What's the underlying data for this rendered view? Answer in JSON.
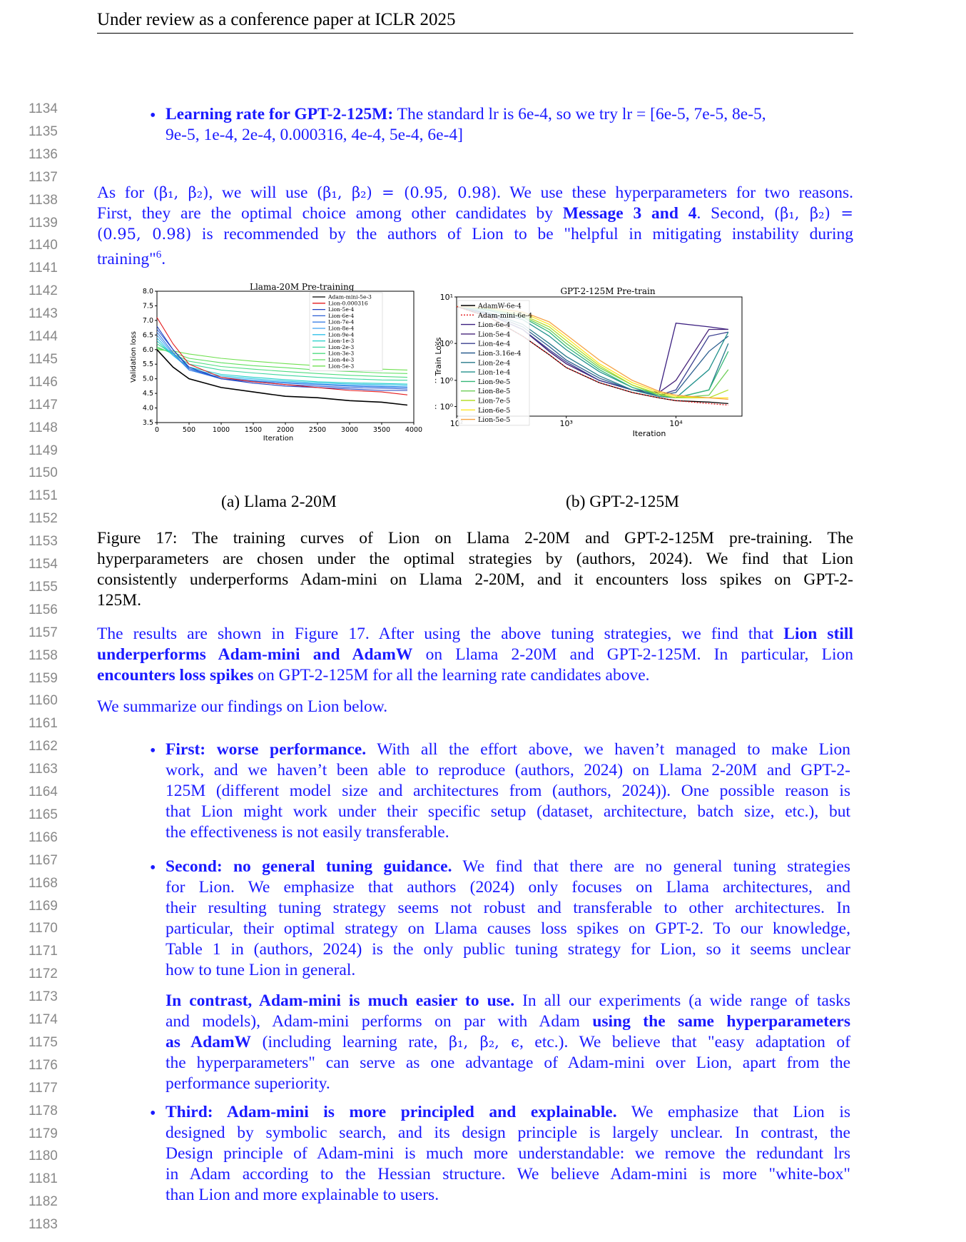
{
  "header": "Under review as a conference paper at ICLR 2025",
  "line_numbers": [
    "1134",
    "1135",
    "1136",
    "1137",
    "1138",
    "1139",
    "1140",
    "1141",
    "1142",
    "1143",
    "1144",
    "1145",
    "1146",
    "1147",
    "1148",
    "1149",
    "1150",
    "1151",
    "1152",
    "1153",
    "1154",
    "1155",
    "1156",
    "1157",
    "1158",
    "1159",
    "1160",
    "1161",
    "1162",
    "1163",
    "1164",
    "1165",
    "1166",
    "1167",
    "1168",
    "1169",
    "1170",
    "1171",
    "1172",
    "1173",
    "1174",
    "1175",
    "1176",
    "1177",
    "1178",
    "1179",
    "1180",
    "1181",
    "1182",
    "1183"
  ],
  "lr_bullet": {
    "bold": "Learning rate for GPT-2-125M:",
    "line1": "The standard lr is 6e-4, so we try lr = [6e-5, 7e-5, 8e-5,",
    "line2": "9e-5, 1e-4, 2e-4, 0.000316, 4e-4, 5e-4, 6e-4]"
  },
  "para1": {
    "l1a": "As for ",
    "l1m1": "(β₁, β₂)",
    "l1b": ", we will use ",
    "l1m2": "(β₁, β₂) = (0.95, 0.98)",
    "l1c": ". We use these hyperparameters for two reasons.",
    "l2a": "First, they are the optimal choice among other candidates by ",
    "l2bold": "Message 3 and 4",
    "l2b": ". Second, ",
    "l2m": "(β₁, β₂) =",
    "l3m": "(0.95, 0.98)",
    "l3b": " is recommended by the authors of Lion to be \"helpful in mitigating instability during",
    "l4": "training\"",
    "l4sup": "6",
    "l4end": "."
  },
  "fig_a": {
    "caption": "(a) Llama 2-20M",
    "title": "Llama-20M Pre-training",
    "ylabel": "Validation loss",
    "xlabel": "Iteration",
    "yticks": [
      "8.0",
      "7.5",
      "7.0",
      "6.5",
      "6.0",
      "5.5",
      "5.0",
      "4.5",
      "4.0",
      "3.5"
    ],
    "xticks": [
      "0",
      "500",
      "1000",
      "1500",
      "2000",
      "2500",
      "3000",
      "3500",
      "4000"
    ],
    "legend": [
      "Adam-mini-5e-3",
      "Lion-0.000316",
      "Lion-5e-4",
      "Lion-6e-4",
      "Lion-7e-4",
      "Lion-8e-4",
      "Lion-9e-4",
      "Lion-1e-3",
      "Lion-2e-3",
      "Lion-3e-3",
      "Lion-4e-3",
      "Lion-5e-3"
    ]
  },
  "fig_b": {
    "caption": "(b) GPT-2-125M",
    "title": "GPT-2-125M Pre-train",
    "ylabel": "Train Loss",
    "xlabel": "Iteration",
    "yticks": [
      "10¹",
      "6 × 10⁰",
      "4 × 10⁰",
      "3 × 10⁰"
    ],
    "xticks": [
      "10²",
      "10³",
      "10⁴"
    ],
    "legend": [
      "AdamW-6e-4",
      "Adam-mini-6e-4",
      "Lion-6e-4",
      "Lion-5e-4",
      "Lion-4e-4",
      "Lion-3.16e-4",
      "Lion-2e-4",
      "Lion-1e-4",
      "Lion-9e-5",
      "Lion-8e-5",
      "Lion-7e-5",
      "Lion-6e-5",
      "Lion-5e-5"
    ]
  },
  "chart_data": [
    {
      "type": "line",
      "title": "Llama-20M Pre-training",
      "xlabel": "Iteration",
      "ylabel": "Validation loss",
      "xlim": [
        0,
        4000
      ],
      "ylim": [
        3.5,
        8.0
      ],
      "x": [
        0,
        250,
        500,
        1000,
        1500,
        2000,
        2500,
        3000,
        3500,
        3900
      ],
      "series": [
        {
          "name": "Adam-mini-5e-3",
          "color": "#000000",
          "values": [
            6.0,
            5.4,
            5.0,
            4.7,
            4.55,
            4.4,
            4.35,
            4.25,
            4.2,
            4.1
          ]
        },
        {
          "name": "Lion-0.000316",
          "color": "#e31a1c",
          "values": [
            7.1,
            6.2,
            5.5,
            5.05,
            4.9,
            4.8,
            4.7,
            4.6,
            4.55,
            4.45
          ]
        },
        {
          "name": "Lion-5e-4",
          "color": "#1f3fbf",
          "values": [
            6.8,
            6.0,
            5.4,
            5.0,
            4.85,
            4.75,
            4.7,
            4.65,
            4.6,
            4.6
          ]
        },
        {
          "name": "Lion-6e-4",
          "color": "#2b5fd6",
          "values": [
            6.7,
            6.0,
            5.35,
            5.0,
            4.9,
            4.8,
            4.75,
            4.7,
            4.68,
            4.65
          ]
        },
        {
          "name": "Lion-7e-4",
          "color": "#3b80e6",
          "values": [
            6.6,
            5.9,
            5.3,
            5.0,
            4.92,
            4.85,
            4.8,
            4.75,
            4.72,
            4.7
          ]
        },
        {
          "name": "Lion-8e-4",
          "color": "#3fa0f0",
          "values": [
            6.5,
            5.85,
            5.3,
            5.05,
            4.95,
            4.88,
            4.82,
            4.78,
            4.75,
            4.72
          ]
        },
        {
          "name": "Lion-9e-4",
          "color": "#2fc0e8",
          "values": [
            6.4,
            5.8,
            5.35,
            5.1,
            5.0,
            4.92,
            4.86,
            4.82,
            4.8,
            4.78
          ]
        },
        {
          "name": "Lion-1e-3",
          "color": "#1fd0c8",
          "values": [
            6.3,
            5.8,
            5.4,
            5.15,
            5.05,
            4.97,
            4.9,
            4.86,
            4.84,
            4.82
          ]
        },
        {
          "name": "Lion-2e-3",
          "color": "#3fd6a0",
          "values": [
            6.2,
            5.85,
            5.5,
            5.3,
            5.2,
            5.12,
            5.05,
            5.0,
            4.96,
            4.95
          ]
        },
        {
          "name": "Lion-3e-3",
          "color": "#4fdc80",
          "values": [
            6.1,
            5.85,
            5.6,
            5.42,
            5.33,
            5.25,
            5.18,
            5.12,
            5.08,
            5.05
          ]
        },
        {
          "name": "Lion-4e-3",
          "color": "#5fe060",
          "values": [
            6.05,
            5.9,
            5.7,
            5.55,
            5.45,
            5.38,
            5.3,
            5.25,
            5.2,
            5.18
          ]
        },
        {
          "name": "Lion-5e-3",
          "color": "#6fe050",
          "values": [
            6.0,
            5.95,
            5.85,
            5.7,
            5.6,
            5.52,
            5.45,
            5.38,
            5.33,
            5.3
          ]
        }
      ]
    },
    {
      "type": "line",
      "title": "GPT-2-125M Pre-train",
      "xlabel": "Iteration",
      "ylabel": "Train Loss",
      "xscale": "log",
      "yscale": "log",
      "xlim": [
        100,
        40000
      ],
      "ylim": [
        2.7,
        10
      ],
      "x": [
        100,
        200,
        400,
        700,
        1000,
        2000,
        4000,
        7000,
        10000,
        20000,
        30000
      ],
      "series": [
        {
          "name": "AdamW-6e-4",
          "color": "#000000",
          "values": [
            9.0,
            8.0,
            6.5,
            5.3,
            4.6,
            3.9,
            3.5,
            3.3,
            3.2,
            3.15,
            3.1
          ]
        },
        {
          "name": "Adam-mini-6e-4",
          "color": "#e31a1c",
          "values": [
            9.0,
            8.0,
            6.5,
            5.3,
            4.6,
            3.9,
            3.5,
            3.3,
            3.2,
            3.1,
            3.05
          ]
        },
        {
          "name": "Lion-6e-4",
          "color": "#3b1f80",
          "values": [
            9.0,
            8.2,
            7.0,
            5.5,
            4.8,
            4.0,
            3.6,
            3.5,
            7.5,
            7.2,
            7.0
          ]
        },
        {
          "name": "Lion-5e-4",
          "color": "#46237a",
          "values": [
            9.0,
            8.2,
            7.0,
            5.5,
            4.8,
            4.0,
            3.6,
            3.5,
            4.0,
            7.0,
            7.0
          ]
        },
        {
          "name": "Lion-4e-4",
          "color": "#3a3f8f",
          "values": [
            9.0,
            8.2,
            7.0,
            5.6,
            4.9,
            4.0,
            3.6,
            3.4,
            3.6,
            6.5,
            6.8
          ]
        },
        {
          "name": "Lion-3.16e-4",
          "color": "#2c5f8f",
          "values": [
            9.0,
            8.3,
            7.2,
            5.8,
            5.0,
            4.1,
            3.6,
            3.4,
            3.5,
            5.5,
            6.5
          ]
        },
        {
          "name": "Lion-2e-4",
          "color": "#267a8a",
          "values": [
            9.0,
            8.4,
            7.4,
            6.0,
            5.2,
            4.2,
            3.6,
            3.35,
            3.3,
            3.6,
            6.0
          ]
        },
        {
          "name": "Lion-1e-4",
          "color": "#21918c",
          "values": [
            9.0,
            8.6,
            7.8,
            6.5,
            5.6,
            4.4,
            3.7,
            3.4,
            3.3,
            4.5,
            6.8
          ]
        },
        {
          "name": "Lion-9e-5",
          "color": "#35b779",
          "values": [
            9.0,
            8.7,
            8.0,
            6.8,
            5.8,
            4.5,
            3.7,
            3.4,
            3.3,
            3.6,
            5.5
          ]
        },
        {
          "name": "Lion-8e-5",
          "color": "#6ece58",
          "values": [
            9.0,
            8.8,
            8.1,
            7.0,
            6.0,
            4.6,
            3.8,
            3.4,
            3.3,
            3.4,
            4.5
          ]
        },
        {
          "name": "Lion-7e-5",
          "color": "#b5de2b",
          "values": [
            9.0,
            8.8,
            8.2,
            7.2,
            6.2,
            4.7,
            3.8,
            3.45,
            3.3,
            3.3,
            3.6
          ]
        },
        {
          "name": "Lion-6e-5",
          "color": "#fde725",
          "values": [
            9.0,
            8.9,
            8.4,
            7.4,
            6.4,
            4.8,
            3.9,
            3.5,
            3.35,
            3.3,
            3.3
          ]
        },
        {
          "name": "Lion-5e-5",
          "color": "#f5a142",
          "values": [
            9.0,
            8.9,
            8.5,
            7.6,
            6.6,
            5.0,
            4.0,
            3.55,
            3.4,
            3.3,
            3.25
          ]
        }
      ]
    }
  ],
  "figure_caption": {
    "l1": "Figure 17:  The training curves of Lion on Llama 2-20M and GPT-2-125M pre-training.  The",
    "l2": "hyperparameters are chosen under the optimal strategies by (authors, 2024).  We find that Lion",
    "l3": "consistently underperforms Adam-mini on Llama 2-20M, and it encounters loss spikes on GPT-2-",
    "l4": "125M."
  },
  "results": {
    "l1a": "The results are shown in Figure 17. After using the above tuning strategies, we find that ",
    "l1bold": "Lion still",
    "l2bold": "underperforms Adam-mini and AdamW",
    "l2b": " on Llama 2-20M and GPT-2-125M. In particular, Lion",
    "l3bold": "encounters loss spikes",
    "l3b": " on GPT-2-125M for all the learning rate candidates above."
  },
  "summary": "We summarize our findings on Lion below.",
  "first": {
    "bold": "First: worse performance.",
    "l1": " With all the effort above, we haven’t managed to make Lion",
    "l2": "work, and we haven’t been able to reproduce (authors, 2024) on Llama 2-20M and GPT-2-",
    "l3": "125M (different model size and architectures from (authors, 2024)). One possible reason is",
    "l4": "that Lion might work under their specific setup (dataset, architecture, batch size, etc.), but",
    "l5": "the effectiveness is not easily transferable."
  },
  "second": {
    "bold": "Second: no general tuning guidance.",
    "l1": " We find that there are no general tuning strategies",
    "l2": "for Lion.  We emphasize that authors (2024) only focuses on Llama architectures, and",
    "l3": "their resulting tuning strategy seems not robust and transferable to other architectures. In",
    "l4": "particular, their optimal strategy on Llama causes loss spikes on GPT-2. To our knowledge,",
    "l5": "Table 1 in (authors, 2024) is the only public tuning strategy for Lion, so it seems unclear",
    "l6": "how to tune Lion in general."
  },
  "contrast": {
    "bold": "In contrast, Adam-mini is much easier to use.",
    "l1": " In all our experiments (a wide range of tasks",
    "l2a": "and models), Adam-mini performs on par with Adam ",
    "l2bold": "using the same hyperparameters",
    "l3bold": "as AdamW",
    "l3b": " (including learning rate, ",
    "l3m": "β₁, β₂, ϵ",
    "l3c": ", etc.). We believe that \"easy adaptation of",
    "l4": "the hyperparameters\" can serve as one advantage of Adam-mini over Lion, apart from the",
    "l5": "performance superiority."
  },
  "third": {
    "bold": "Third:  Adam-mini is more principled and explainable.",
    "l1": "  We emphasize that Lion is",
    "l2": "designed by symbolic search, and its design principle is largely unclear.  In contrast, the",
    "l3": "Design principle of Adam-mini is much more understandable: we remove the redundant lrs",
    "l4": "in Adam according to the Hessian structure. We believe Adam-mini is more \"white-box\"",
    "l5": "than Lion and more explainable to users."
  }
}
